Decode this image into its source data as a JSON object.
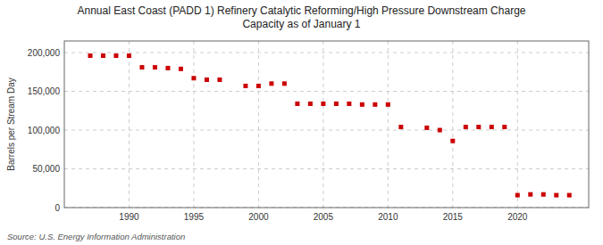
{
  "chart_data": {
    "type": "scatter",
    "title": "Annual East Coast (PADD 1) Refinery Catalytic Reforming/High Pressure Downstream Charge\nCapacity as of January 1",
    "y_label": "Barrels per Stream Day",
    "source": "Source: U.S. Energy Information Administration",
    "x": [
      1987,
      1988,
      1989,
      1990,
      1991,
      1992,
      1993,
      1994,
      1995,
      1996,
      1997,
      1999,
      2000,
      2001,
      2002,
      2003,
      2004,
      2005,
      2006,
      2007,
      2008,
      2009,
      2010,
      2011,
      2013,
      2014,
      2015,
      2016,
      2017,
      2018,
      2019,
      2020,
      2021,
      2022,
      2023,
      2024
    ],
    "values": [
      196000,
      196000,
      196000,
      196000,
      181000,
      181000,
      180000,
      179000,
      167000,
      165000,
      165000,
      157000,
      157000,
      160000,
      160000,
      134000,
      134000,
      134000,
      134000,
      134000,
      133000,
      133000,
      133000,
      104000,
      103000,
      100000,
      86000,
      104000,
      104000,
      104000,
      104000,
      16000,
      17000,
      17000,
      16000,
      16000
    ],
    "color": "#cc0000",
    "marker": "square",
    "xlim": [
      1985,
      2025.5
    ],
    "ylim": [
      0,
      215000
    ],
    "xticks": [
      1990,
      1995,
      2000,
      2005,
      2010,
      2015,
      2020
    ],
    "yticks": [
      0,
      {
        "value": 50000,
        "label": "50,000"
      },
      {
        "value": 100000,
        "label": "100,000"
      },
      {
        "value": 150000,
        "label": "150,000"
      },
      {
        "value": 200000,
        "label": "200,000"
      }
    ],
    "grid": true
  }
}
